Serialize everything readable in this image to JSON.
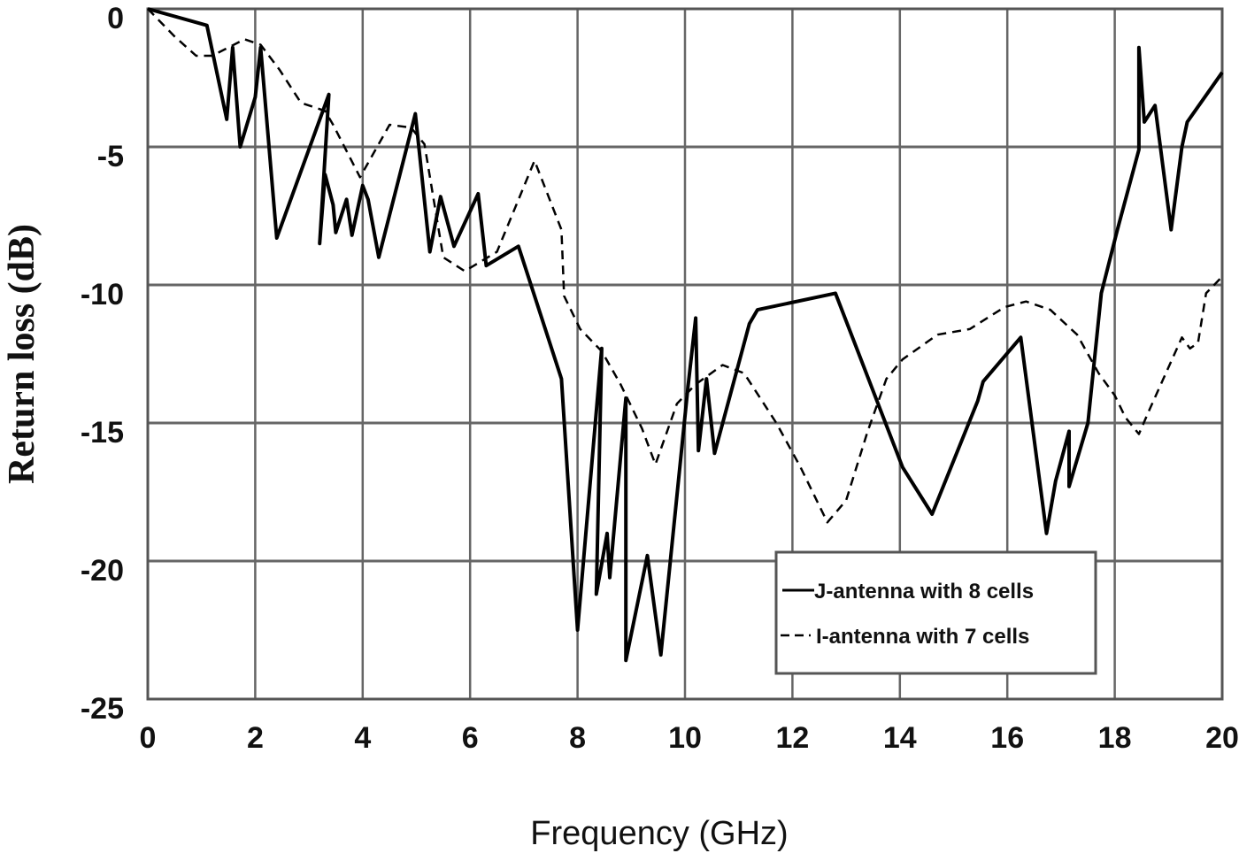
{
  "chart_data": {
    "type": "line",
    "title": "",
    "xlabel": "Frequency (GHz)",
    "ylabel": "Return loss (dB)",
    "xlim": [
      0,
      20
    ],
    "ylim": [
      -25,
      0
    ],
    "xticks": [
      0,
      2,
      4,
      6,
      8,
      10,
      12,
      14,
      16,
      18,
      20
    ],
    "yticks": [
      0,
      -5,
      -10,
      -15,
      -20,
      -25
    ],
    "xtick_labels": [
      "0",
      "2",
      "4",
      "6",
      "8",
      "10",
      "12",
      "14",
      "16",
      "18",
      "20"
    ],
    "ytick_labels": [
      "0",
      "-5",
      "-10",
      "-15",
      "-20",
      "-25"
    ],
    "grid": true,
    "legend_position": "lower right (inside plot)",
    "series": [
      {
        "name": "J-antenna with 8 cells",
        "style": "solid",
        "color": "#000000",
        "x": [
          0,
          1.1,
          1.47,
          1.58,
          1.72,
          2.0,
          2.1,
          2.4,
          3.37,
          3.2,
          3.3,
          3.45,
          3.5,
          3.7,
          3.8,
          4.0,
          4.1,
          4.3,
          4.98,
          5.25,
          5.45,
          5.7,
          6.15,
          6.3,
          6.9,
          7.7,
          8.0,
          8.45,
          8.35,
          8.55,
          8.6,
          8.9,
          8.9,
          9.3,
          9.55,
          10.05,
          10.2,
          10.25,
          10.4,
          10.55,
          11.2,
          11.35,
          12.8,
          14.05,
          14.6,
          15.45,
          15.55,
          16.25,
          16.73,
          16.9,
          17.15,
          17.15,
          17.5,
          17.75,
          18.05,
          18.45,
          18.45,
          18.55,
          18.75,
          19.05,
          19.25,
          19.35,
          20.0
        ],
        "y": [
          0,
          -0.6,
          -4.0,
          -1.4,
          -5.0,
          -3.2,
          -1.4,
          -8.3,
          -3.1,
          -8.5,
          -6.0,
          -7.1,
          -8.1,
          -6.9,
          -8.2,
          -6.4,
          -6.9,
          -9.0,
          -3.8,
          -8.8,
          -6.8,
          -8.6,
          -6.7,
          -9.3,
          -8.6,
          -13.4,
          -22.5,
          -12.3,
          -21.2,
          -19.0,
          -20.6,
          -14.1,
          -23.6,
          -19.8,
          -23.4,
          -13.8,
          -11.2,
          -16.0,
          -13.4,
          -16.1,
          -11.4,
          -10.9,
          -10.3,
          -16.6,
          -18.3,
          -14.2,
          -13.5,
          -11.9,
          -19.0,
          -17.1,
          -15.3,
          -17.3,
          -15.0,
          -10.3,
          -8.0,
          -5.1,
          -1.4,
          -4.1,
          -3.5,
          -8.0,
          -5.0,
          -4.1,
          -2.3
        ]
      },
      {
        "name": "I-antenna with 7 cells",
        "style": "dashed",
        "color": "#000000",
        "x": [
          0,
          0.5,
          0.9,
          1.2,
          1.5,
          1.8,
          2.1,
          2.45,
          2.85,
          3.3,
          3.45,
          3.95,
          4.5,
          4.9,
          5.15,
          5.5,
          5.9,
          6.5,
          7.2,
          7.7,
          7.75,
          8.05,
          8.45,
          8.8,
          9.2,
          9.45,
          9.85,
          10.2,
          10.7,
          11.1,
          11.7,
          12.15,
          12.65,
          13.0,
          13.4,
          13.75,
          14.05,
          14.7,
          15.3,
          15.95,
          16.35,
          16.8,
          17.3,
          17.7,
          18.0,
          18.2,
          18.45,
          18.65,
          19.25,
          19.4,
          19.55,
          19.7,
          20.0
        ],
        "y": [
          0,
          -1.0,
          -1.7,
          -1.7,
          -1.4,
          -1.1,
          -1.3,
          -2.2,
          -3.4,
          -3.7,
          -4.2,
          -6.1,
          -4.2,
          -4.3,
          -4.9,
          -9.0,
          -9.5,
          -8.8,
          -5.5,
          -8.0,
          -10.4,
          -11.6,
          -12.4,
          -13.6,
          -15.2,
          -16.5,
          -14.3,
          -13.6,
          -12.9,
          -13.2,
          -15.0,
          -16.6,
          -18.6,
          -17.8,
          -15.3,
          -13.4,
          -12.7,
          -11.8,
          -11.6,
          -10.8,
          -10.6,
          -10.9,
          -11.8,
          -13.2,
          -14.0,
          -14.8,
          -15.4,
          -14.5,
          -11.9,
          -12.3,
          -12.1,
          -10.3,
          -9.7
        ]
      }
    ],
    "legend": [
      {
        "label": "J-antenna with 8 cells",
        "style": "solid"
      },
      {
        "label": "I-antenna with 7 cells",
        "style": "dashed"
      }
    ]
  },
  "axes": {
    "xlabel": "Frequency (GHz)",
    "ylabel": "Return loss (dB)"
  },
  "legend": {
    "item1": "J-antenna with 8 cells",
    "item2": "I-antenna with 7 cells",
    "marker1": "—",
    "marker2": "--"
  },
  "colors": {
    "grid": "#666666",
    "lines": "#000000",
    "frame": "#555555"
  }
}
